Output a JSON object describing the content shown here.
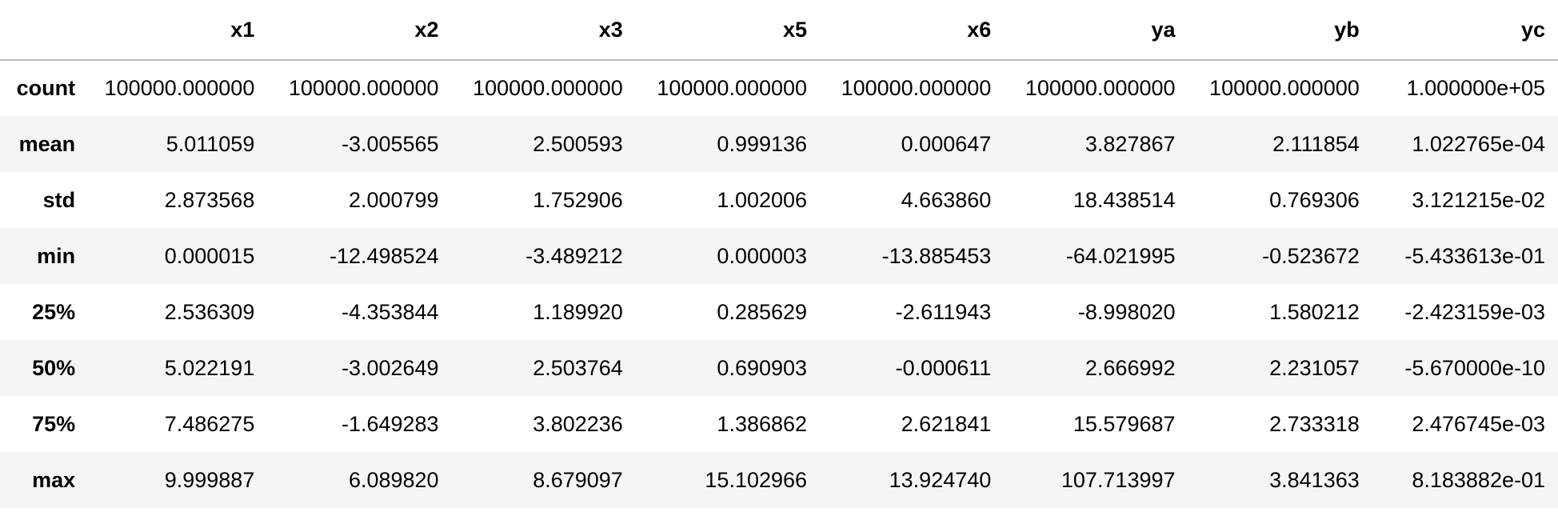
{
  "table": {
    "index_header": "",
    "columns": [
      "x1",
      "x2",
      "x3",
      "x5",
      "x6",
      "ya",
      "yb",
      "yc"
    ],
    "rows": [
      {
        "label": "count",
        "values": [
          "100000.000000",
          "100000.000000",
          "100000.000000",
          "100000.000000",
          "100000.000000",
          "100000.000000",
          "100000.000000",
          "1.000000e+05"
        ]
      },
      {
        "label": "mean",
        "values": [
          "5.011059",
          "-3.005565",
          "2.500593",
          "0.999136",
          "0.000647",
          "3.827867",
          "2.111854",
          "1.022765e-04"
        ]
      },
      {
        "label": "std",
        "values": [
          "2.873568",
          "2.000799",
          "1.752906",
          "1.002006",
          "4.663860",
          "18.438514",
          "0.769306",
          "3.121215e-02"
        ]
      },
      {
        "label": "min",
        "values": [
          "0.000015",
          "-12.498524",
          "-3.489212",
          "0.000003",
          "-13.885453",
          "-64.021995",
          "-0.523672",
          "-5.433613e-01"
        ]
      },
      {
        "label": "25%",
        "values": [
          "2.536309",
          "-4.353844",
          "1.189920",
          "0.285629",
          "-2.611943",
          "-8.998020",
          "1.580212",
          "-2.423159e-03"
        ]
      },
      {
        "label": "50%",
        "values": [
          "5.022191",
          "-3.002649",
          "2.503764",
          "0.690903",
          "-0.000611",
          "2.666992",
          "2.231057",
          "-5.670000e-10"
        ]
      },
      {
        "label": "75%",
        "values": [
          "7.486275",
          "-1.649283",
          "3.802236",
          "1.386862",
          "2.621841",
          "15.579687",
          "2.733318",
          "2.476745e-03"
        ]
      },
      {
        "label": "max",
        "values": [
          "9.999887",
          "6.089820",
          "8.679097",
          "15.102966",
          "13.924740",
          "107.713997",
          "3.841363",
          "8.183882e-01"
        ]
      }
    ]
  }
}
